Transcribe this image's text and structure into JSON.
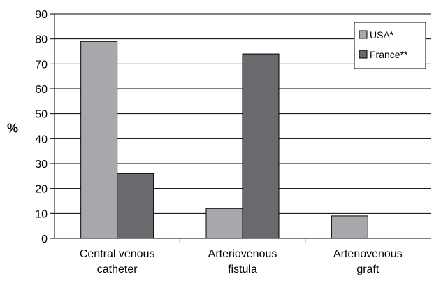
{
  "chart_data": {
    "type": "bar",
    "categories": [
      [
        "Central venous",
        "catheter"
      ],
      [
        "Arteriovenous",
        "fistula"
      ],
      [
        "Arteriovenous",
        "graft"
      ]
    ],
    "series": [
      {
        "name": "USA*",
        "values": [
          79,
          12,
          9
        ],
        "color": "#a8a8ac"
      },
      {
        "name": "France**",
        "values": [
          26,
          74,
          null
        ],
        "color": "#6a6a6e"
      }
    ],
    "title": "",
    "xlabel": "",
    "ylabel": "%",
    "ylim": [
      0,
      90
    ],
    "yticks": [
      "0",
      "10",
      "20",
      "30",
      "40",
      "50",
      "60",
      "70",
      "80",
      "90"
    ],
    "grid": true,
    "legend_position": "top-right"
  }
}
